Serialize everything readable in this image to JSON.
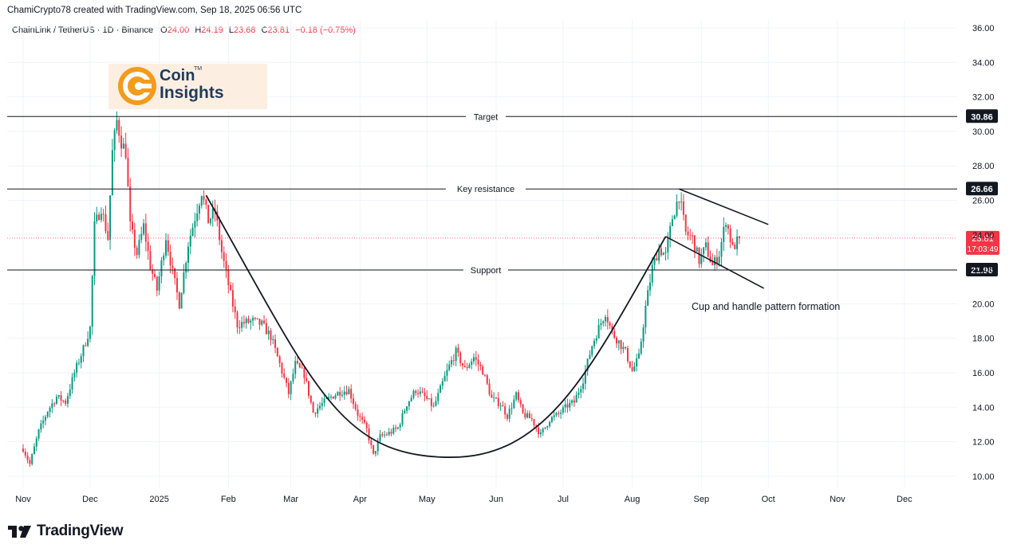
{
  "header": {
    "credit": "ChamiCrypto78 created with TradingView.com, Sep 18, 2025 06:56 UTC"
  },
  "legend": {
    "symbol": "ChainLink / TetherUS · 1D · Binance",
    "open_label": "O",
    "open": "24.00",
    "high_label": "H",
    "high": "24.19",
    "low_label": "L",
    "low": "23.68",
    "close_label": "C",
    "close": "23.81",
    "change": "−0.18 (−0.75%)"
  },
  "logo": {
    "line1": "Coin",
    "line2": "Insights",
    "tm": "TM"
  },
  "footer": {
    "brand": "TradingView"
  },
  "colors": {
    "up": "#089981",
    "down": "#f23645",
    "line": "#131722",
    "price_tag": "#f23645"
  },
  "chart_data": {
    "type": "candlestick",
    "symbol": "ChainLink / TetherUS",
    "interval": "1D",
    "exchange": "Binance",
    "ylim": [
      9.4,
      36.6
    ],
    "y_ticks": [
      "10.00",
      "12.00",
      "14.00",
      "16.00",
      "18.00",
      "20.00",
      "22.00",
      "24.00",
      "26.00",
      "28.00",
      "30.00",
      "32.00",
      "34.00",
      "36.00"
    ],
    "x_ticks": [
      "Nov",
      "Dec",
      "2025",
      "Feb",
      "Mar",
      "Apr",
      "May",
      "Jun",
      "Jul",
      "Aug",
      "Sep",
      "Oct",
      "Nov",
      "Dec"
    ],
    "x_tick_dates": [
      "2024-11-01",
      "2024-12-01",
      "2025-01-01",
      "2025-02-01",
      "2025-03-01",
      "2025-04-01",
      "2025-05-01",
      "2025-06-01",
      "2025-07-01",
      "2025-08-01",
      "2025-09-01",
      "2025-10-01",
      "2025-11-01",
      "2025-12-01"
    ],
    "horizontal_levels": [
      {
        "label": "Target",
        "value": 30.86
      },
      {
        "label": "Key resistance",
        "value": 26.66
      },
      {
        "label": "Support",
        "value": 21.96
      }
    ],
    "current_price": {
      "value": "23.81",
      "countdown": "17:03:49"
    },
    "annotation": "Cup and handle pattern formation",
    "trendlines": [
      {
        "name": "handle-upper",
        "points": [
          [
            "2025-08-22",
            26.66
          ],
          [
            "2025-10-01",
            24.6
          ]
        ]
      },
      {
        "name": "handle-lower",
        "points": [
          [
            "2025-08-16",
            23.9
          ],
          [
            "2025-09-29",
            20.9
          ]
        ]
      }
    ],
    "cup_curve": {
      "start": [
        "2025-01-22",
        26.3
      ],
      "bottom": [
        "2025-05-12",
        11.1
      ],
      "end": [
        "2025-08-16",
        23.9
      ]
    },
    "path": [
      [
        "2024-10-31",
        11.9
      ],
      [
        "2024-11-04",
        10.7
      ],
      [
        "2024-11-08",
        12.6
      ],
      [
        "2024-11-12",
        13.8
      ],
      [
        "2024-11-16",
        14.6
      ],
      [
        "2024-11-20",
        14.3
      ],
      [
        "2024-11-24",
        16.0
      ],
      [
        "2024-11-28",
        17.4
      ],
      [
        "2024-12-01",
        18.6
      ],
      [
        "2024-12-03",
        24.5
      ],
      [
        "2024-12-06",
        25.6
      ],
      [
        "2024-12-09",
        23.8
      ],
      [
        "2024-12-11",
        28.8
      ],
      [
        "2024-12-13",
        30.6
      ],
      [
        "2024-12-15",
        29.4
      ],
      [
        "2024-12-17",
        28.8
      ],
      [
        "2024-12-19",
        24.5
      ],
      [
        "2024-12-22",
        22.9
      ],
      [
        "2024-12-25",
        24.5
      ],
      [
        "2024-12-28",
        22.2
      ],
      [
        "2024-12-31",
        20.8
      ],
      [
        "2025-01-04",
        23.9
      ],
      [
        "2025-01-07",
        21.8
      ],
      [
        "2025-01-10",
        20.0
      ],
      [
        "2025-01-14",
        23.5
      ],
      [
        "2025-01-17",
        25.0
      ],
      [
        "2025-01-20",
        26.5
      ],
      [
        "2025-01-23",
        24.8
      ],
      [
        "2025-01-26",
        25.4
      ],
      [
        "2025-01-29",
        23.0
      ],
      [
        "2025-02-02",
        20.5
      ],
      [
        "2025-02-05",
        18.8
      ],
      [
        "2025-02-08",
        18.9
      ],
      [
        "2025-02-12",
        19.0
      ],
      [
        "2025-02-16",
        18.8
      ],
      [
        "2025-02-20",
        18.1
      ],
      [
        "2025-02-24",
        16.5
      ],
      [
        "2025-02-28",
        14.8
      ],
      [
        "2025-03-03",
        16.5
      ],
      [
        "2025-03-07",
        15.9
      ],
      [
        "2025-03-11",
        13.7
      ],
      [
        "2025-03-15",
        14.2
      ],
      [
        "2025-03-19",
        14.6
      ],
      [
        "2025-03-23",
        14.9
      ],
      [
        "2025-03-27",
        15.0
      ],
      [
        "2025-03-31",
        13.6
      ],
      [
        "2025-04-04",
        12.7
      ],
      [
        "2025-04-07",
        11.2
      ],
      [
        "2025-04-10",
        12.3
      ],
      [
        "2025-04-14",
        12.5
      ],
      [
        "2025-04-18",
        12.8
      ],
      [
        "2025-04-22",
        14.2
      ],
      [
        "2025-04-26",
        15.0
      ],
      [
        "2025-04-30",
        14.6
      ],
      [
        "2025-05-04",
        14.0
      ],
      [
        "2025-05-08",
        15.4
      ],
      [
        "2025-05-11",
        16.4
      ],
      [
        "2025-05-14",
        17.2
      ],
      [
        "2025-05-18",
        16.2
      ],
      [
        "2025-05-22",
        16.9
      ],
      [
        "2025-05-26",
        16.1
      ],
      [
        "2025-05-30",
        14.5
      ],
      [
        "2025-06-03",
        14.2
      ],
      [
        "2025-06-06",
        13.5
      ],
      [
        "2025-06-10",
        14.7
      ],
      [
        "2025-06-13",
        13.6
      ],
      [
        "2025-06-17",
        13.3
      ],
      [
        "2025-06-21",
        12.4
      ],
      [
        "2025-06-25",
        13.3
      ],
      [
        "2025-06-29",
        13.6
      ],
      [
        "2025-07-03",
        14.1
      ],
      [
        "2025-07-06",
        14.3
      ],
      [
        "2025-07-10",
        15.6
      ],
      [
        "2025-07-14",
        17.6
      ],
      [
        "2025-07-17",
        18.6
      ],
      [
        "2025-07-20",
        19.5
      ],
      [
        "2025-07-23",
        18.3
      ],
      [
        "2025-07-26",
        17.8
      ],
      [
        "2025-07-29",
        17.2
      ],
      [
        "2025-08-01",
        16.1
      ],
      [
        "2025-08-04",
        16.9
      ],
      [
        "2025-08-07",
        19.8
      ],
      [
        "2025-08-10",
        22.1
      ],
      [
        "2025-08-13",
        23.2
      ],
      [
        "2025-08-16",
        22.8
      ],
      [
        "2025-08-19",
        25.0
      ],
      [
        "2025-08-22",
        26.3
      ],
      [
        "2025-08-25",
        24.1
      ],
      [
        "2025-08-28",
        23.8
      ],
      [
        "2025-08-31",
        22.5
      ],
      [
        "2025-09-03",
        23.3
      ],
      [
        "2025-09-06",
        22.2
      ],
      [
        "2025-09-09",
        22.9
      ],
      [
        "2025-09-12",
        24.9
      ],
      [
        "2025-09-15",
        23.2
      ],
      [
        "2025-09-18",
        23.81
      ]
    ]
  }
}
